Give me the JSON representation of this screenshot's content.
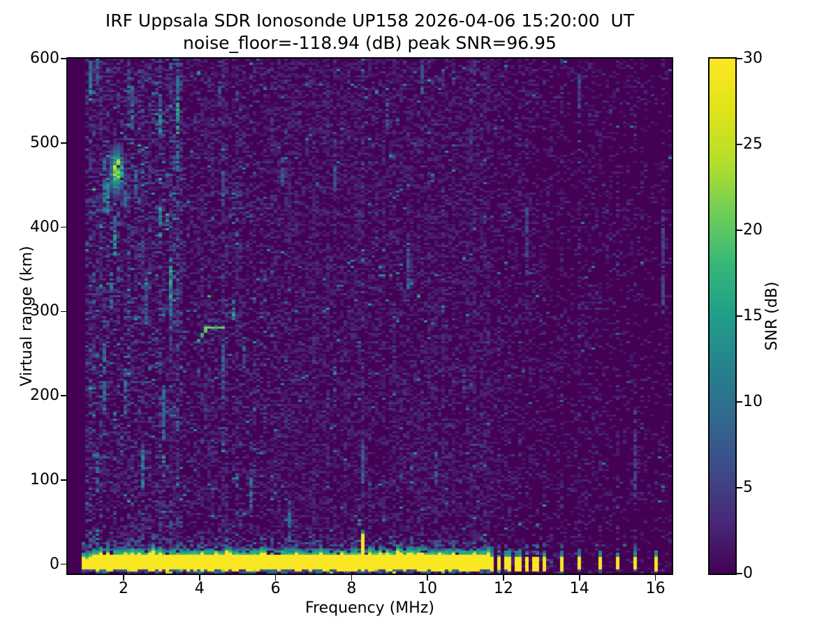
{
  "chart_data": {
    "type": "heatmap",
    "title": "IRF Uppsala SDR Ionosonde UP158 2026-04-06 15:20:00  UT",
    "subtitle": "noise_floor=-118.94 (dB) peak SNR=96.95",
    "station": "UP158",
    "timestamp_ut": "2026-04-06 15:20:00",
    "noise_floor_db": -118.94,
    "peak_snr_db": 96.95,
    "xlabel": "Frequency (MHz)",
    "ylabel": "Virtual range (km)",
    "colorbar_label": "SNR (dB)",
    "colormap": "viridis",
    "xlim": [
      0.53,
      16.43
    ],
    "ylim": [
      -11,
      600
    ],
    "clim": [
      0,
      30
    ],
    "x_ticks": [
      2,
      4,
      6,
      8,
      10,
      12,
      14,
      16
    ],
    "y_ticks": [
      0,
      100,
      200,
      300,
      400,
      500,
      600
    ],
    "colorbar_ticks": [
      0,
      5,
      10,
      15,
      20,
      25,
      30
    ],
    "data": {
      "freq_range_mhz": [
        0.95,
        16.32
      ],
      "ground_band": {
        "f0": 0.95,
        "f1": 11.68,
        "bottom_km": -7.5,
        "top_km_base": 9,
        "top_km_jitter": 3,
        "snr_db": 30
      },
      "ground_spike": {
        "freq_mhz": 8.29,
        "top_km": 34
      },
      "transmitter_stub_freqs_mhz": [
        11.72,
        11.87,
        12.02,
        12.17,
        12.32,
        12.47,
        12.62,
        12.77,
        12.92,
        13.07,
        13.5,
        14.0,
        14.5,
        15.0,
        15.45,
        16.05
      ],
      "patch": {
        "center_f_mhz": 1.83,
        "center_range_km": 467,
        "sigma_f": 0.17,
        "sigma_r": 24,
        "peak_snr_db": 25,
        "f_range": [
          1.42,
          2.3
        ],
        "r_range": [
          408,
          516
        ]
      },
      "trace": {
        "points": [
          [
            3.96,
            263
          ],
          [
            4.05,
            272
          ],
          [
            4.15,
            279
          ],
          [
            4.3,
            281
          ],
          [
            4.5,
            281
          ],
          [
            4.64,
            280
          ]
        ],
        "snr_db": 19
      },
      "noise_streaks": [
        [
          1.17,
          555,
          600,
          10
        ],
        [
          1.3,
          572,
          600,
          8
        ],
        [
          1.35,
          88,
          132,
          9
        ],
        [
          1.45,
          418,
          482,
          10
        ],
        [
          1.5,
          178,
          262,
          9
        ],
        [
          1.62,
          418,
          458,
          11
        ],
        [
          1.75,
          368,
          416,
          11
        ],
        [
          1.68,
          298,
          346,
          9
        ],
        [
          2.05,
          425,
          462,
          10
        ],
        [
          2.05,
          178,
          232,
          8
        ],
        [
          2.2,
          518,
          566,
          9
        ],
        [
          2.3,
          438,
          472,
          8
        ],
        [
          2.55,
          92,
          142,
          10
        ],
        [
          2.6,
          286,
          338,
          8
        ],
        [
          2.95,
          513,
          556,
          11
        ],
        [
          2.97,
          390,
          422,
          12
        ],
        [
          3.1,
          148,
          212,
          9
        ],
        [
          3.25,
          296,
          362,
          13
        ],
        [
          3.45,
          512,
          576,
          13
        ],
        [
          3.45,
          468,
          502,
          9
        ],
        [
          4.5,
          543,
          566,
          7
        ],
        [
          4.62,
          428,
          466,
          8
        ],
        [
          4.62,
          198,
          262,
          7
        ],
        [
          4.9,
          290,
          312,
          12
        ],
        [
          5.15,
          228,
          268,
          8
        ],
        [
          5.35,
          58,
          102,
          8
        ],
        [
          6.2,
          453,
          482,
          8
        ],
        [
          6.4,
          18,
          72,
          9
        ],
        [
          7.6,
          446,
          472,
          7
        ],
        [
          8.29,
          98,
          142,
          7
        ],
        [
          8.9,
          518,
          546,
          7
        ],
        [
          9.5,
          328,
          372,
          7
        ],
        [
          9.9,
          558,
          592,
          7
        ],
        [
          10.2,
          98,
          132,
          6
        ],
        [
          11.0,
          198,
          232,
          6
        ],
        [
          12.62,
          348,
          422,
          5
        ],
        [
          14.02,
          538,
          582,
          5
        ],
        [
          15.42,
          78,
          182,
          5
        ],
        [
          16.2,
          298,
          422,
          5
        ]
      ],
      "rfi_stripes": [
        [
          1.17,
          1.8
        ],
        [
          1.45,
          1.5
        ],
        [
          2.15,
          1.6
        ],
        [
          2.5,
          1.4
        ],
        [
          2.95,
          1.7
        ],
        [
          3.25,
          1.7
        ],
        [
          3.45,
          2.0
        ],
        [
          4.32,
          1.5
        ],
        [
          4.62,
          1.7
        ],
        [
          5.0,
          1.4
        ],
        [
          5.35,
          1.35
        ],
        [
          6.33,
          1.45
        ],
        [
          6.52,
          1.35
        ],
        [
          7.0,
          1.35
        ],
        [
          7.38,
          1.3
        ],
        [
          8.29,
          1.7
        ],
        [
          8.65,
          1.3
        ],
        [
          9.15,
          1.45
        ],
        [
          9.5,
          1.5
        ],
        [
          10.45,
          1.35
        ],
        [
          10.9,
          1.3
        ],
        [
          11.2,
          1.35
        ],
        [
          13.3,
          1.35
        ],
        [
          13.75,
          1.3
        ],
        [
          14.25,
          1.3
        ],
        [
          14.75,
          1.3
        ],
        [
          15.2,
          1.3
        ],
        [
          15.7,
          1.3
        ],
        [
          16.2,
          1.45
        ]
      ]
    }
  }
}
